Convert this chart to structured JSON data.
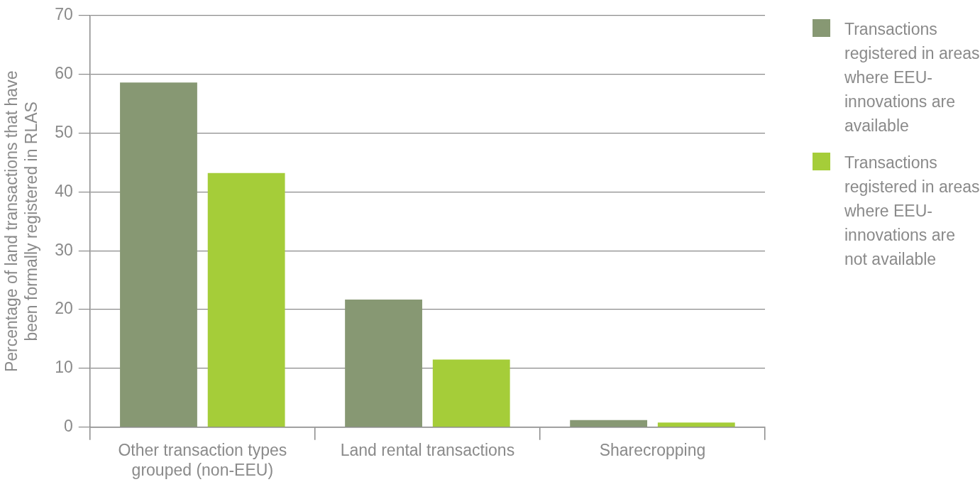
{
  "chart_data": {
    "type": "bar",
    "ylabel": "Percentage of land transactions that have been formally registered in RLAS",
    "categories": [
      "Other transaction types grouped (non-EEU)",
      "Land rental transactions",
      "Sharecropping"
    ],
    "series": [
      {
        "name": "Transactions registered in areas where EEU-innovations are available",
        "color": "#879873",
        "values": [
          58.6,
          21.7,
          1.2
        ]
      },
      {
        "name": "Transactions registered in areas where EEU-innovations are not available",
        "color": "#a5cd39",
        "values": [
          43.2,
          11.5,
          0.8
        ]
      }
    ],
    "ylim": [
      0,
      70
    ],
    "yticks": [
      0,
      10,
      20,
      30,
      40,
      50,
      60,
      70
    ],
    "grid": "y",
    "legend": "top right"
  }
}
